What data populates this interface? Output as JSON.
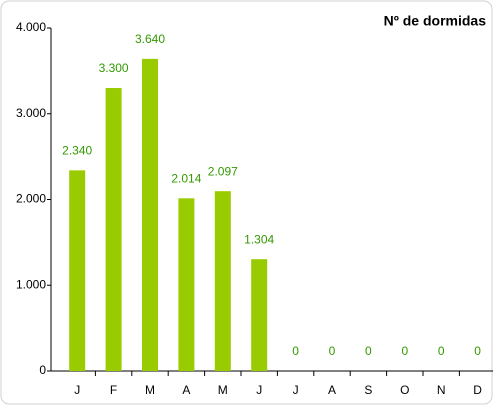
{
  "chart_data": {
    "type": "bar",
    "title": "Nº de dormidas",
    "categories": [
      "J",
      "F",
      "M",
      "A",
      "M",
      "J",
      "J",
      "A",
      "S",
      "O",
      "N",
      "D"
    ],
    "values": [
      2340,
      3300,
      3640,
      2014,
      2097,
      1304,
      0,
      0,
      0,
      0,
      0,
      0
    ],
    "value_labels": [
      "2.340",
      "3.300",
      "3.640",
      "2.014",
      "2.097",
      "1.304",
      "0",
      "0",
      "0",
      "0",
      "0",
      "0"
    ],
    "color": "#99cc00",
    "ylim": [
      0,
      4000
    ],
    "yticks": [
      0,
      {
        "value": 1000,
        "label": "1.000"
      },
      {
        "value": 2000,
        "label": "2.000"
      },
      {
        "value": 3000,
        "label": "3.000"
      },
      {
        "value": 4000,
        "label": "4.000"
      }
    ],
    "grid": false
  }
}
